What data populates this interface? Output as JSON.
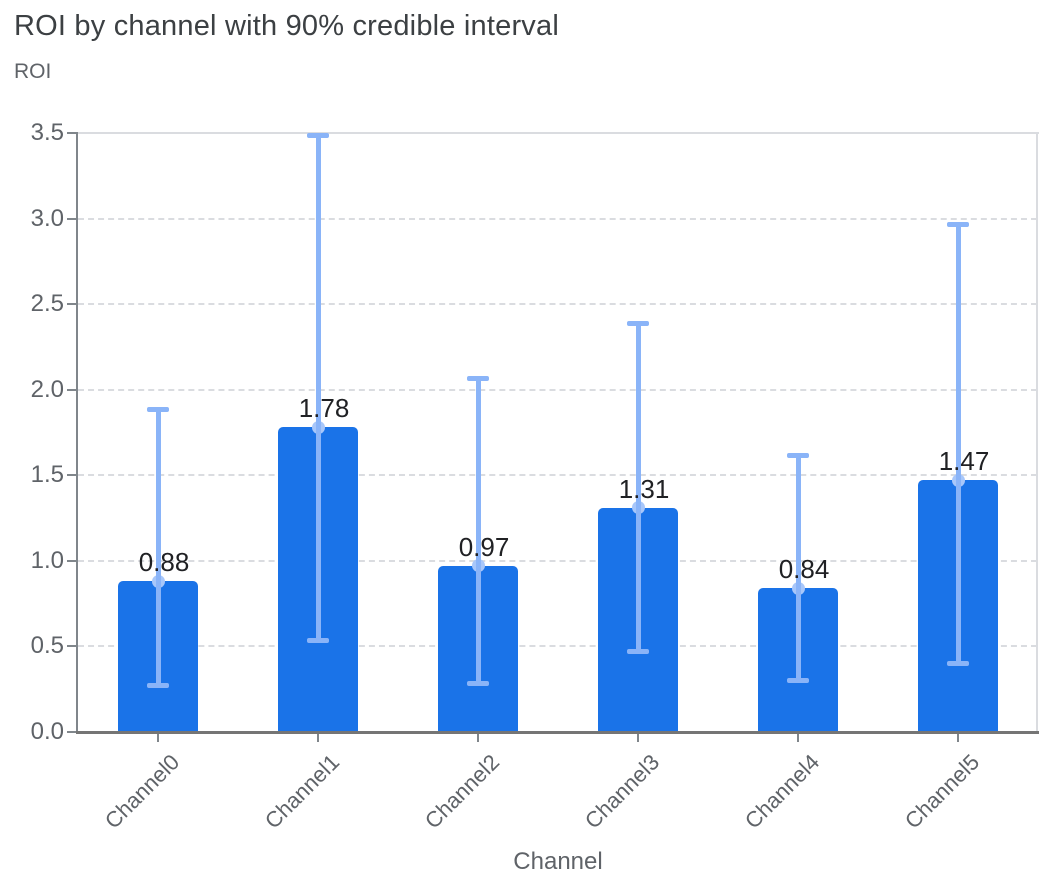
{
  "chart_data": {
    "type": "bar",
    "title": "ROI by channel with 90% credible interval",
    "ylabel": "ROI",
    "xlabel": "Channel",
    "categories": [
      "Channel0",
      "Channel1",
      "Channel2",
      "Channel3",
      "Channel4",
      "Channel5"
    ],
    "series": [
      {
        "name": "ROI",
        "values": [
          0.88,
          1.78,
          0.97,
          1.31,
          0.84,
          1.47
        ],
        "labels": [
          "0.88",
          "1.78",
          "0.97",
          "1.31",
          "0.84",
          "1.47"
        ],
        "ci_lower": [
          0.27,
          0.53,
          0.28,
          0.47,
          0.3,
          0.4
        ],
        "ci_upper": [
          1.89,
          3.49,
          2.07,
          2.39,
          1.62,
          2.97
        ]
      }
    ],
    "interval_label": "90% credible interval",
    "ylim": [
      0,
      3.5
    ],
    "yticks": [
      0.0,
      0.5,
      1.0,
      1.5,
      2.0,
      2.5,
      3.0,
      3.5
    ],
    "ytick_labels": [
      "0.0",
      "0.5",
      "1.0",
      "1.5",
      "2.0",
      "2.5",
      "3.0",
      "3.5"
    ],
    "grid": "horizontal-dashed",
    "legend": "none",
    "colors": {
      "bar": "#1A73E8",
      "error_bar": "#8AB4F8",
      "mean_marker": "#A8C7FA",
      "gridline": "#DADCE0",
      "x_axis_line": "#757575",
      "y_axis_line": "#80868B",
      "tick_mark": "#80868B",
      "tick_label": "#5F6368",
      "value_label": "#202124",
      "title": "#3C4043"
    }
  }
}
